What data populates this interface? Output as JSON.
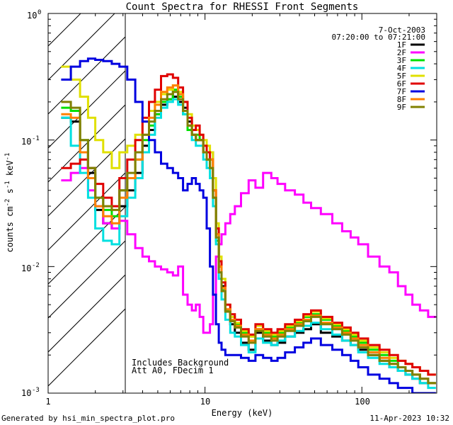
{
  "chart_data": {
    "type": "line",
    "title": "Count Spectra for RHESSI Front Segments",
    "xlabel": "Energy (keV)",
    "ylabel": "counts cm-2 s-1 keV-1",
    "xscale": "log",
    "yscale": "log",
    "xlim": [
      1,
      300
    ],
    "ylim": [
      0.001,
      1.0
    ],
    "x_tick_labels": [
      "1",
      "10",
      "100"
    ],
    "y_tick_labels": [
      "10-3",
      "10-2",
      "10-1",
      "100"
    ],
    "date_label": "7-Oct-2003",
    "time_range_label": "07:20:00 to 07:21:00",
    "annotation_lines": [
      "Includes Background",
      "Att A0, FDecim 1"
    ],
    "shaded_region_keV": [
      1,
      3
    ],
    "footer_left": "Generated by hsi_min_spectra_plot.pro",
    "footer_right": "11-Apr-2023 10:32",
    "x": [
      1.3,
      1.5,
      1.7,
      1.9,
      2.1,
      2.4,
      2.7,
      3.0,
      3.4,
      3.8,
      4.2,
      4.6,
      5.0,
      5.5,
      6.0,
      6.5,
      7.0,
      7.5,
      8.0,
      8.5,
      9.0,
      9.5,
      10,
      10.5,
      11,
      11.5,
      12,
      12.5,
      13,
      14,
      15,
      16,
      18,
      20,
      22,
      25,
      28,
      30,
      35,
      40,
      45,
      50,
      60,
      70,
      80,
      90,
      100,
      120,
      140,
      160,
      180,
      200,
      220,
      250,
      280
    ],
    "series": [
      {
        "name": "1F",
        "color": "#000000",
        "values": [
          0.15,
          0.14,
          0.08,
          0.055,
          0.028,
          0.022,
          0.02,
          0.03,
          0.04,
          0.055,
          0.09,
          0.12,
          0.16,
          0.19,
          0.21,
          0.22,
          0.2,
          0.18,
          0.14,
          0.11,
          0.1,
          0.1,
          0.08,
          0.08,
          0.08,
          0.04,
          0.018,
          0.01,
          0.007,
          0.0045,
          0.0035,
          0.003,
          0.0025,
          0.0022,
          0.003,
          0.0026,
          0.0024,
          0.0025,
          0.0028,
          0.003,
          0.0032,
          0.0035,
          0.003,
          0.0028,
          0.0026,
          0.0024,
          0.0022,
          0.002,
          0.0018,
          0.0016,
          0.0015,
          0.0014,
          0.0013,
          0.0012,
          0.0012
        ]
      },
      {
        "name": "2F",
        "color": "#ff00ff",
        "values": [
          0.048,
          0.055,
          0.06,
          0.04,
          0.03,
          0.022,
          0.02,
          0.023,
          0.018,
          0.014,
          0.012,
          0.011,
          0.01,
          0.0095,
          0.009,
          0.0085,
          0.01,
          0.006,
          0.005,
          0.0045,
          0.005,
          0.004,
          0.003,
          0.003,
          0.0035,
          0.006,
          0.012,
          0.015,
          0.018,
          0.022,
          0.026,
          0.03,
          0.038,
          0.048,
          0.042,
          0.055,
          0.05,
          0.045,
          0.04,
          0.037,
          0.032,
          0.029,
          0.026,
          0.022,
          0.019,
          0.017,
          0.015,
          0.012,
          0.01,
          0.009,
          0.007,
          0.006,
          0.005,
          0.0045,
          0.004
        ]
      },
      {
        "name": "3F",
        "color": "#00e000",
        "values": [
          0.18,
          0.17,
          0.1,
          0.06,
          0.035,
          0.028,
          0.025,
          0.04,
          0.05,
          0.07,
          0.1,
          0.13,
          0.16,
          0.2,
          0.21,
          0.25,
          0.22,
          0.16,
          0.12,
          0.11,
          0.11,
          0.1,
          0.08,
          0.07,
          0.06,
          0.035,
          0.016,
          0.009,
          0.0065,
          0.0045,
          0.004,
          0.0035,
          0.003,
          0.0028,
          0.0032,
          0.003,
          0.0028,
          0.003,
          0.0033,
          0.0036,
          0.004,
          0.0042,
          0.0038,
          0.0034,
          0.0031,
          0.0028,
          0.0025,
          0.0022,
          0.002,
          0.0018,
          0.0016,
          0.0015,
          0.0014,
          0.0013,
          0.0012
        ]
      },
      {
        "name": "4F",
        "color": "#00e0e0",
        "values": [
          0.15,
          0.09,
          0.055,
          0.035,
          0.02,
          0.016,
          0.015,
          0.025,
          0.035,
          0.05,
          0.08,
          0.11,
          0.15,
          0.18,
          0.2,
          0.21,
          0.19,
          0.16,
          0.13,
          0.1,
          0.09,
          0.09,
          0.07,
          0.06,
          0.05,
          0.03,
          0.015,
          0.008,
          0.0055,
          0.0038,
          0.003,
          0.0028,
          0.0024,
          0.0021,
          0.0027,
          0.0025,
          0.0024,
          0.0026,
          0.0028,
          0.0031,
          0.0034,
          0.0036,
          0.0032,
          0.0029,
          0.0026,
          0.0024,
          0.0021,
          0.0019,
          0.0017,
          0.0016,
          0.0015,
          0.0014,
          0.0013,
          0.0012,
          0.0011
        ]
      },
      {
        "name": "5F",
        "color": "#e0e000",
        "values": [
          0.38,
          0.3,
          0.22,
          0.15,
          0.1,
          0.08,
          0.06,
          0.08,
          0.09,
          0.11,
          0.14,
          0.17,
          0.2,
          0.23,
          0.25,
          0.27,
          0.24,
          0.2,
          0.16,
          0.13,
          0.12,
          0.11,
          0.1,
          0.09,
          0.08,
          0.05,
          0.022,
          0.012,
          0.008,
          0.005,
          0.004,
          0.0036,
          0.0031,
          0.0028,
          0.0034,
          0.0031,
          0.0029,
          0.0031,
          0.0034,
          0.0037,
          0.0041,
          0.0044,
          0.0039,
          0.0035,
          0.0032,
          0.0029,
          0.0026,
          0.0023,
          0.0021,
          0.0019,
          0.0018,
          0.0017,
          0.0016,
          0.0015,
          0.0014
        ]
      },
      {
        "name": "6F",
        "color": "#e00000",
        "values": [
          0.06,
          0.065,
          0.07,
          0.06,
          0.045,
          0.035,
          0.03,
          0.05,
          0.07,
          0.1,
          0.15,
          0.2,
          0.25,
          0.32,
          0.33,
          0.31,
          0.26,
          0.2,
          0.15,
          0.12,
          0.13,
          0.11,
          0.09,
          0.08,
          0.07,
          0.04,
          0.02,
          0.011,
          0.0075,
          0.005,
          0.0042,
          0.0038,
          0.0032,
          0.0029,
          0.0035,
          0.0032,
          0.003,
          0.0032,
          0.0035,
          0.0038,
          0.0042,
          0.0045,
          0.004,
          0.0036,
          0.0033,
          0.003,
          0.0027,
          0.0024,
          0.0022,
          0.002,
          0.0018,
          0.0017,
          0.0016,
          0.0015,
          0.0014
        ]
      },
      {
        "name": "7F",
        "color": "#0000e0",
        "values": [
          0.3,
          0.38,
          0.42,
          0.44,
          0.43,
          0.42,
          0.4,
          0.38,
          0.3,
          0.2,
          0.14,
          0.1,
          0.08,
          0.065,
          0.06,
          0.055,
          0.05,
          0.04,
          0.045,
          0.05,
          0.045,
          0.04,
          0.035,
          0.02,
          0.01,
          0.006,
          0.0035,
          0.0025,
          0.0022,
          0.002,
          0.002,
          0.002,
          0.0019,
          0.0018,
          0.002,
          0.0019,
          0.0018,
          0.0019,
          0.0021,
          0.0023,
          0.0025,
          0.0027,
          0.0024,
          0.0022,
          0.002,
          0.0018,
          0.0016,
          0.0014,
          0.0013,
          0.0012,
          0.0011,
          0.0011,
          0.001,
          0.001,
          0.001
        ]
      },
      {
        "name": "8F",
        "color": "#ff8000",
        "values": [
          0.16,
          0.15,
          0.08,
          0.05,
          0.03,
          0.025,
          0.022,
          0.035,
          0.05,
          0.07,
          0.11,
          0.15,
          0.19,
          0.24,
          0.26,
          0.27,
          0.23,
          0.17,
          0.13,
          0.11,
          0.1,
          0.1,
          0.08,
          0.07,
          0.07,
          0.04,
          0.018,
          0.01,
          0.0068,
          0.0046,
          0.0038,
          0.0034,
          0.0029,
          0.0026,
          0.0032,
          0.0029,
          0.0027,
          0.0029,
          0.0032,
          0.0035,
          0.0038,
          0.0041,
          0.0036,
          0.0033,
          0.003,
          0.0027,
          0.0024,
          0.0021,
          0.0019,
          0.0017,
          0.0016,
          0.0015,
          0.0014,
          0.0013,
          0.0012
        ]
      },
      {
        "name": "9F",
        "color": "#808000",
        "values": [
          0.2,
          0.18,
          0.1,
          0.06,
          0.035,
          0.03,
          0.028,
          0.04,
          0.055,
          0.08,
          0.11,
          0.14,
          0.17,
          0.21,
          0.23,
          0.24,
          0.21,
          0.17,
          0.13,
          0.11,
          0.1,
          0.1,
          0.08,
          0.07,
          0.06,
          0.035,
          0.017,
          0.009,
          0.0064,
          0.0044,
          0.0037,
          0.0033,
          0.0028,
          0.0025,
          0.0031,
          0.0028,
          0.0026,
          0.0028,
          0.0031,
          0.0034,
          0.0037,
          0.004,
          0.0035,
          0.0032,
          0.0029,
          0.0026,
          0.0023,
          0.002,
          0.0018,
          0.0017,
          0.0016,
          0.0015,
          0.0014,
          0.0013,
          0.0012
        ]
      }
    ]
  }
}
